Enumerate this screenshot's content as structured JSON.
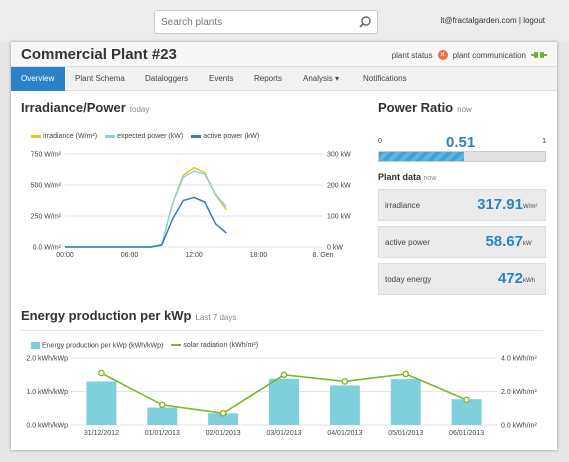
{
  "search": {
    "placeholder": "Search plants"
  },
  "user": {
    "email": "lt@fractalgarden.com",
    "separator": "|",
    "logout": "logout"
  },
  "plant": {
    "title": "Commercial Plant #23",
    "status_label": "plant status",
    "communication_label": "plant communication"
  },
  "tabs": [
    {
      "label": "Overview",
      "active": true
    },
    {
      "label": "Plant Schema"
    },
    {
      "label": "Dataloggers"
    },
    {
      "label": "Events"
    },
    {
      "label": "Reports"
    },
    {
      "label": "Analysis ▾"
    },
    {
      "label": "Notifications"
    }
  ],
  "irradiance": {
    "title": "Irradiance/Power",
    "subtitle": "today"
  },
  "power_ratio": {
    "title": "Power Ratio",
    "subtitle": "now",
    "min": "0",
    "max": "1",
    "value_text": "0.51",
    "value": 0.51
  },
  "plant_data": {
    "title": "Plant data",
    "subtitle": "now",
    "items": [
      {
        "label": "irradiance",
        "value": "317.91",
        "unit": "W/m²"
      },
      {
        "label": "active power",
        "value": "58.67",
        "unit": "kW"
      },
      {
        "label": "today energy",
        "value": "472",
        "unit": "kWh"
      }
    ]
  },
  "energy": {
    "title": "Energy production per kWp",
    "subtitle": "Last 7 days"
  },
  "colors": {
    "accent": "#2b82c9",
    "irradiance": "#f0c020",
    "expected": "#8fd0e8",
    "active": "#2b82c9",
    "bar": "#7fd0dc",
    "solar": "#7ab828"
  },
  "chart_data": [
    {
      "type": "line",
      "x": [
        "00:00",
        "01:00",
        "02:00",
        "03:00",
        "04:00",
        "05:00",
        "06:00",
        "07:00",
        "08:00",
        "09:00",
        "10:00",
        "11:00",
        "12:00",
        "13:00",
        "14:00",
        "15:00"
      ],
      "x_ticks": [
        "00:00",
        "06:00",
        "12:00",
        "18:00",
        "8. Gen"
      ],
      "ylim_left": [
        0,
        750
      ],
      "ylim_right": [
        0,
        300
      ],
      "left_ticks": [
        "0.0 W/m²",
        "250 W/m²",
        "500 W/m²",
        "750 W/m²"
      ],
      "right_ticks": [
        "0 kW",
        "100 kW",
        "200 kW",
        "300 kW"
      ],
      "series": [
        {
          "name": "irradiance (W/m²)",
          "axis": "left",
          "values": [
            0,
            0,
            0,
            0,
            0,
            0,
            0,
            0,
            0,
            20,
            350,
            580,
            640,
            600,
            420,
            300
          ]
        },
        {
          "name": "expected power (kW)",
          "axis": "right",
          "values": [
            0,
            0,
            0,
            0,
            0,
            0,
            0,
            0,
            0,
            8,
            140,
            225,
            245,
            235,
            170,
            130
          ]
        },
        {
          "name": "active power (kW)",
          "axis": "right",
          "values": [
            0,
            0,
            0,
            0,
            0,
            0,
            0,
            0,
            0,
            6,
            90,
            150,
            160,
            145,
            75,
            45
          ]
        }
      ]
    },
    {
      "type": "bar",
      "categories": [
        "31/12/2012",
        "01/01/2013",
        "02/01/2013",
        "03/01/2013",
        "04/01/2013",
        "05/01/2013",
        "06/01/2013"
      ],
      "ylim_left": [
        0,
        2.0
      ],
      "ylim_right": [
        0,
        4.0
      ],
      "left_ticks": [
        "0.0 kWh/kWp",
        "1.0 kWh/kWp",
        "2.0 kWh/kWp"
      ],
      "right_ticks": [
        "0.0 kWh/m²",
        "2.0 kWh/m²",
        "4.0 kWh/m²"
      ],
      "series": [
        {
          "name": "Energy production per kWp (kWh/kWp)",
          "type": "bar",
          "axis": "left",
          "values": [
            1.3,
            0.52,
            0.35,
            1.38,
            1.18,
            1.37,
            0.77
          ]
        },
        {
          "name": "solar radiation (kWh/m²)",
          "type": "line",
          "axis": "right",
          "values": [
            3.1,
            1.2,
            0.7,
            3.0,
            2.6,
            3.05,
            1.5
          ]
        }
      ]
    }
  ]
}
